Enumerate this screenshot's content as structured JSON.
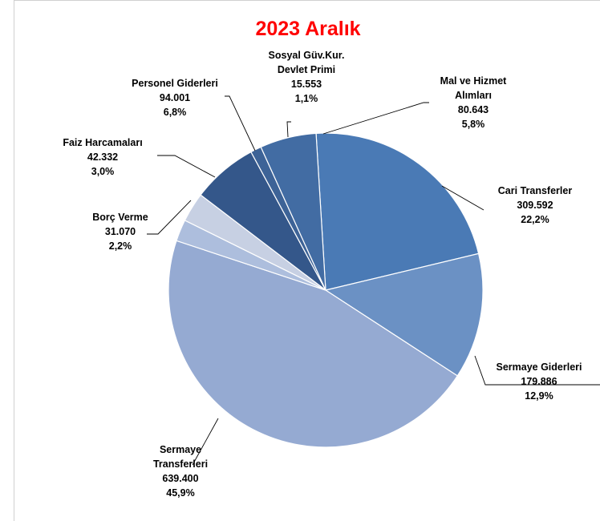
{
  "chart_data": {
    "type": "pie",
    "title": "2023 Aralık",
    "title_color": "#ff0000",
    "legend": "none",
    "start_angle_deg": 93.5,
    "direction": "clockwise",
    "slices": [
      {
        "label_lines": [
          "Cari Transferler"
        ],
        "value": 309592,
        "value_text": "309.592",
        "percent_text": "22,2%",
        "color": "#4a7ab5"
      },
      {
        "label_lines": [
          "Sermaye Giderleri"
        ],
        "value": 179886,
        "value_text": "179.886",
        "percent_text": "12,9%",
        "color": "#6b91c4"
      },
      {
        "label_lines": [
          "Sermaye",
          "Transferleri"
        ],
        "value": 639400,
        "value_text": "639.400",
        "percent_text": "45,9%",
        "color": "#95aad2"
      },
      {
        "label_lines": [
          "Borç Verme"
        ],
        "value": 31070,
        "value_text": "31.070",
        "percent_text": "2,2%",
        "color": "#adbedd"
      },
      {
        "label_lines": [
          "Faiz Harcamaları"
        ],
        "value": 42332,
        "value_text": "42.332",
        "percent_text": "3,0%",
        "color": "#c7d0e3"
      },
      {
        "label_lines": [
          "Personel Giderleri"
        ],
        "value": 94001,
        "value_text": "94.001",
        "percent_text": "6,8%",
        "color": "#34578a"
      },
      {
        "label_lines": [
          "Sosyal Güv.Kur.",
          "Devlet Primi"
        ],
        "value": 15553,
        "value_text": "15.553",
        "percent_text": "1,1%",
        "color": "#3d6397"
      },
      {
        "label_lines": [
          "Mal ve Hizmet",
          "Alımları"
        ],
        "value": 80643,
        "value_text": "80.643",
        "percent_text": "5,8%",
        "color": "#426ca3"
      }
    ]
  }
}
